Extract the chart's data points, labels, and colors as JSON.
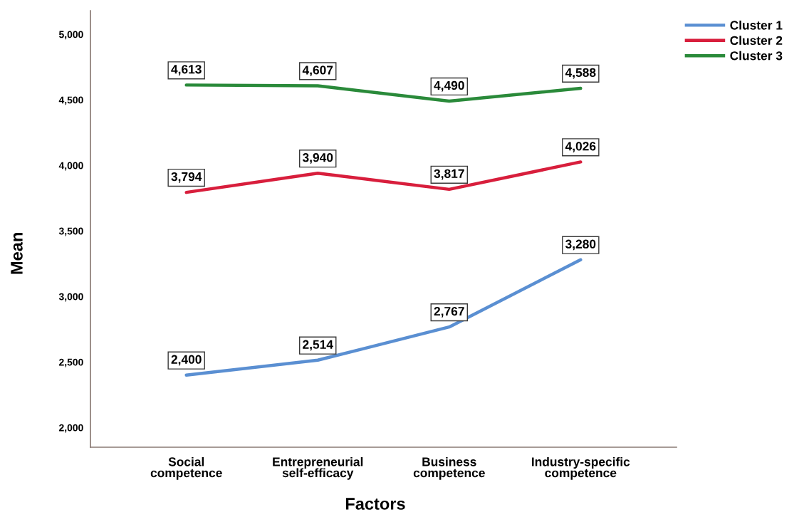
{
  "chart_data": {
    "type": "line",
    "xlabel": "Factors",
    "ylabel": "Mean",
    "categories": [
      "Social\ncompetence",
      "Entrepreneurial\nself-efficacy",
      "Business\ncompetence",
      "Industry-specific\ncompetence"
    ],
    "series": [
      {
        "name": "Cluster 1",
        "color": "#5a8fd2",
        "values": [
          2400,
          2514,
          2767,
          3280
        ],
        "value_labels": [
          "2,400",
          "2,514",
          "2,767",
          "3,280"
        ]
      },
      {
        "name": "Cluster 2",
        "color": "#d81e3c",
        "values": [
          3794,
          3940,
          3817,
          4026
        ],
        "value_labels": [
          "3,794",
          "3,940",
          "3,817",
          "4,026"
        ]
      },
      {
        "name": "Cluster 3",
        "color": "#2a8a3a",
        "values": [
          4613,
          4607,
          4490,
          4588
        ],
        "value_labels": [
          "4,613",
          "4,607",
          "4,490",
          "4,588"
        ]
      }
    ],
    "ylim": [
      1850,
      5180
    ],
    "yticks": [
      {
        "value": 2000,
        "label": "2,000"
      },
      {
        "value": 2500,
        "label": "2,500"
      },
      {
        "value": 3000,
        "label": "3,000"
      },
      {
        "value": 3500,
        "label": "3,500"
      },
      {
        "value": 4000,
        "label": "4,000"
      },
      {
        "value": 4500,
        "label": "4,500"
      },
      {
        "value": 5000,
        "label": "5,000"
      }
    ],
    "grid": false,
    "legend": "top right",
    "line_style": "solid"
  }
}
